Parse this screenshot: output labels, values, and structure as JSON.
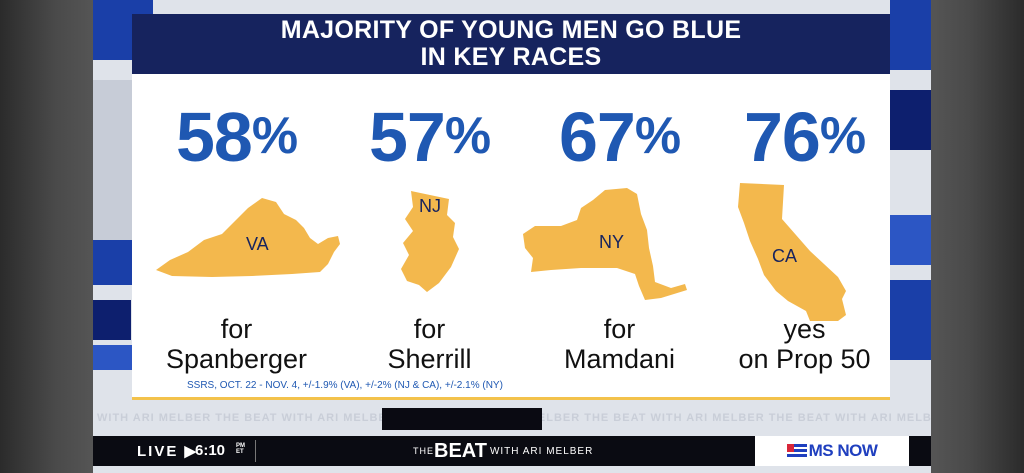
{
  "graphic": {
    "title_lines": [
      "MAJORITY OF YOUNG MEN GO BLUE",
      "IN KEY RACES"
    ],
    "columns": [
      {
        "percent": "58",
        "symbol": "%",
        "state": "VA",
        "line1": "for",
        "line2": "Spanberger"
      },
      {
        "percent": "57",
        "symbol": "%",
        "state": "NJ",
        "line1": "for",
        "line2": "Sherrill"
      },
      {
        "percent": "67",
        "symbol": "%",
        "state": "NY",
        "line1": "for",
        "line2": "Mamdani"
      },
      {
        "percent": "76",
        "symbol": "%",
        "state": "CA",
        "line1": "yes",
        "line2": "on Prop 50"
      }
    ],
    "source": "SSRS, OCT. 22 - NOV. 4, +/-1.9% (VA), +/-2% (NJ & CA), +/-2.1% (NY)",
    "colors": {
      "navy": "#16235e",
      "blue": "#1f58b2",
      "gold": "#f3b84d"
    }
  },
  "ticker": {
    "repeat_text": "WITH ARI MELBER      THE BEAT WITH ARI MELBER      THE BEAT WITH ARI MELBER      THE BEAT WITH ARI MELBER      THE BEAT WITH ARI MELBER"
  },
  "bottom_bar": {
    "live": "LIVE",
    "arrow": "▶",
    "time": "6:10",
    "time_ampm": "PM",
    "time_zone": "ET",
    "show_the": "THE",
    "show_beat": "BEAT",
    "show_with": "WITH ARI MELBER",
    "network": "MS NOW",
    "network_icon": "flag-icon"
  }
}
